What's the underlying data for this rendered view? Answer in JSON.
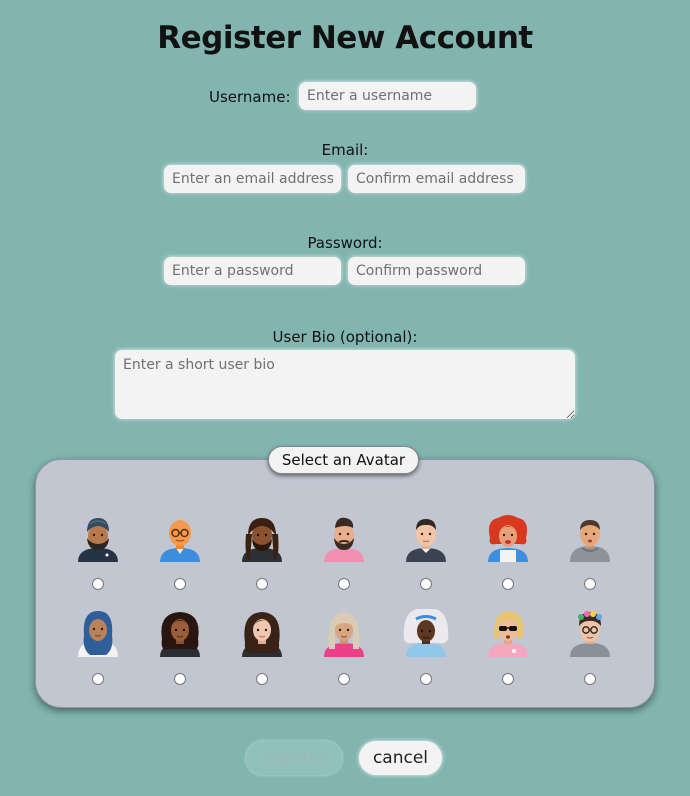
{
  "page": {
    "title": "Register New Account"
  },
  "form": {
    "username": {
      "label": "Username:",
      "placeholder": "Enter a username",
      "value": ""
    },
    "email": {
      "label": "Email:",
      "placeholder": "Enter an email address",
      "confirm_placeholder": "Confirm email address"
    },
    "password": {
      "label": "Password:",
      "placeholder": "Enter a password",
      "confirm_placeholder": "Confirm password"
    },
    "bio": {
      "label": "User Bio (optional):",
      "placeholder": "Enter a short user bio"
    }
  },
  "avatars": {
    "header": "Select an Avatar",
    "selected": null,
    "rows": [
      [
        {
          "icon": "turban-bearded-man-avatar-icon"
        },
        {
          "icon": "bald-glasses-man-avatar-icon"
        },
        {
          "icon": "dreadlocks-man-avatar-icon"
        },
        {
          "icon": "bearded-man-avatar-icon"
        },
        {
          "icon": "short-hair-man-avatar-icon"
        },
        {
          "icon": "red-curly-hair-woman-avatar-icon"
        },
        {
          "icon": "hoodie-man-avatar-icon"
        }
      ],
      [
        {
          "icon": "hijab-woman-avatar-icon"
        },
        {
          "icon": "curly-hair-woman-avatar-icon"
        },
        {
          "icon": "wavy-hair-woman-avatar-icon"
        },
        {
          "icon": "blonde-woman-avatar-icon"
        },
        {
          "icon": "white-afro-woman-avatar-icon"
        },
        {
          "icon": "sunglasses-blonde-woman-avatar-icon"
        },
        {
          "icon": "flower-crown-glasses-avatar-icon"
        }
      ]
    ]
  },
  "actions": {
    "register_label": "register",
    "cancel_label": "cancel"
  },
  "colors": {
    "background": "#82b5b0",
    "panel": "#c1c6d1",
    "field": "#f3f3f3"
  }
}
